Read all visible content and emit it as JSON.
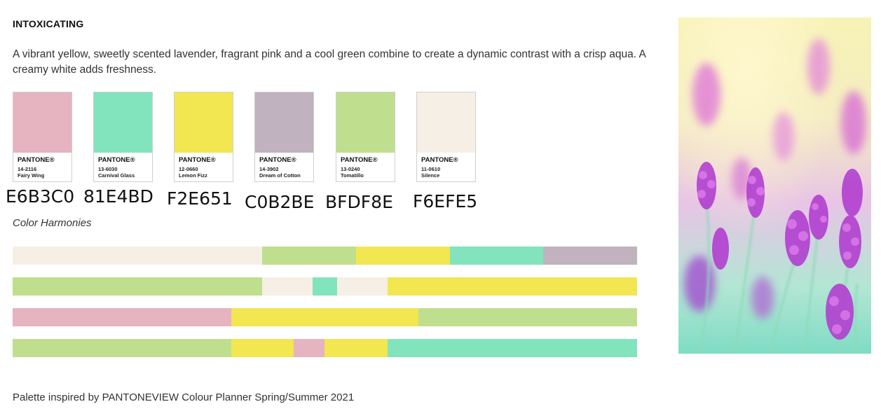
{
  "title": "INTOXICATING",
  "description": "A vibrant yellow, sweetly scented lavender, fragrant pink and a cool green combine to create a dynamic contrast with a crisp aqua. A creamy white adds freshness.",
  "swatches": [
    {
      "brand": "PANTONE®",
      "code": "14-2116",
      "name": "Fairy Wing",
      "hex": "E6B3C0",
      "color": "#E6B3C0"
    },
    {
      "brand": "PANTONE®",
      "code": "13-6030",
      "name": "Carnival Glass",
      "hex": "81E4BD",
      "color": "#81E4BD"
    },
    {
      "brand": "PANTONE®",
      "code": "12-0660",
      "name": "Lemon Fizz",
      "hex": "F2E651",
      "color": "#F2E651"
    },
    {
      "brand": "PANTONE®",
      "code": "14-3902",
      "name": "Dream of Cotton",
      "hex": "C0B2BE",
      "color": "#C0B2BE"
    },
    {
      "brand": "PANTONE®",
      "code": "13-0240",
      "name": "Tomatillo",
      "hex": "BFDF8E",
      "color": "#BFDF8E"
    },
    {
      "brand": "PANTONE®",
      "code": "11-0610",
      "name": "Silence",
      "hex": "F6EFE5",
      "color": "#F6EFE5"
    }
  ],
  "harmonies_label": "Color Harmonies",
  "harmonies": [
    [
      {
        "color": "#F6EFE5",
        "share": 0.4
      },
      {
        "color": "#BFDF8E",
        "share": 0.15
      },
      {
        "color": "#F2E651",
        "share": 0.15
      },
      {
        "color": "#81E4BD",
        "share": 0.15
      },
      {
        "color": "#C0B2BE",
        "share": 0.15
      }
    ],
    [
      {
        "color": "#BFDF8E",
        "share": 0.4
      },
      {
        "color": "#F6EFE5",
        "share": 0.08
      },
      {
        "color": "#81E4BD",
        "share": 0.04
      },
      {
        "color": "#F6EFE5",
        "share": 0.08
      },
      {
        "color": "#F2E651",
        "share": 0.4
      }
    ],
    [
      {
        "color": "#E6B3C0",
        "share": 0.35
      },
      {
        "color": "#F2E651",
        "share": 0.3
      },
      {
        "color": "#BFDF8E",
        "share": 0.35
      }
    ],
    [
      {
        "color": "#BFDF8E",
        "share": 0.35
      },
      {
        "color": "#F2E651",
        "share": 0.1
      },
      {
        "color": "#E6B3C0",
        "share": 0.05
      },
      {
        "color": "#F2E651",
        "share": 0.1
      },
      {
        "color": "#81E4BD",
        "share": 0.4
      }
    ]
  ],
  "footer": "Palette inspired by PANTONEVIEW Colour Planner Spring/Summer 2021"
}
